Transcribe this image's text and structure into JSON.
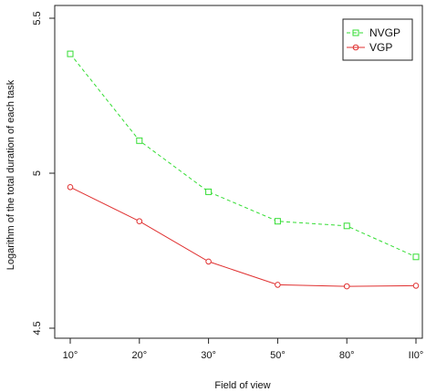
{
  "chart_data": {
    "type": "line",
    "title": "",
    "xlabel": "Field of view",
    "ylabel": "Logarithm of the total duration of each task",
    "categories": [
      "10°",
      "20°",
      "30°",
      "50°",
      "80°",
      "II0°"
    ],
    "y_ticks": [
      4.5,
      5,
      5.5
    ],
    "y_tick_labels": [
      "4.5",
      "5",
      "5.5"
    ],
    "ylim": [
      4.5,
      5.5
    ],
    "grid": false,
    "legend_position": "top-right",
    "series": [
      {
        "name": "NVGP",
        "color": "#33dd33",
        "line_style": "dashed",
        "marker": "square",
        "values": [
          5.385,
          5.105,
          4.94,
          4.845,
          4.83,
          4.73
        ]
      },
      {
        "name": "VGP",
        "color": "#e03030",
        "line_style": "solid",
        "marker": "circle",
        "values": [
          4.955,
          4.845,
          4.715,
          4.64,
          4.635,
          4.637
        ]
      }
    ]
  }
}
